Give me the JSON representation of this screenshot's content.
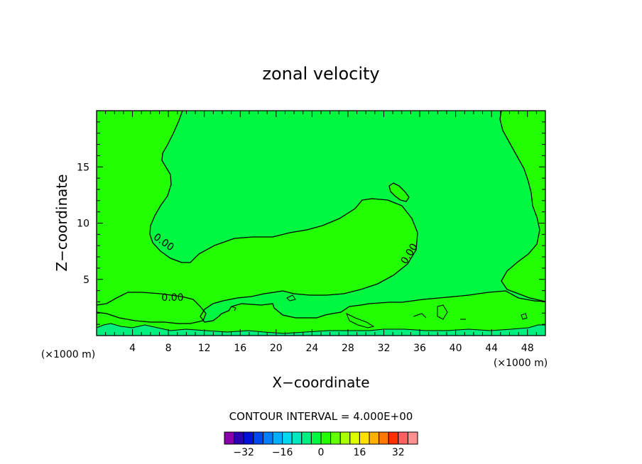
{
  "chart_data": {
    "type": "heatmap",
    "title": "zonal velocity",
    "xlabel": "X−coordinate",
    "ylabel": "Z−coordinate",
    "x_unit_left": "(×1000 m)",
    "x_unit_right": "(×1000 m)",
    "xlim": [
      0,
      50
    ],
    "ylim": [
      0,
      20
    ],
    "x_ticks": [
      4,
      8,
      12,
      16,
      20,
      24,
      28,
      32,
      36,
      40,
      44,
      48
    ],
    "y_ticks": [
      5,
      10,
      15
    ],
    "contour_interval_label": "CONTOUR INTERVAL = 4.000E+00",
    "contour_interval": 4.0,
    "contour_labels": [
      "0.00",
      "0.00",
      "0.00"
    ],
    "colorbar": {
      "tick_labels": [
        "−32",
        "−16",
        "0",
        "16",
        "32"
      ],
      "tick_values": [
        -32,
        -16,
        0,
        16,
        32
      ],
      "levels": [
        -40,
        -36,
        -32,
        -28,
        -24,
        -20,
        -16,
        -12,
        -8,
        -4,
        0,
        4,
        8,
        12,
        16,
        20,
        24,
        28,
        32,
        36,
        40
      ],
      "colors": [
        "#8800aa",
        "#2a00b0",
        "#0010d8",
        "#0048ee",
        "#0080ff",
        "#00b0ff",
        "#00d8f0",
        "#00e8c0",
        "#00f080",
        "#00f840",
        "#22ff00",
        "#66ff00",
        "#aaff00",
        "#ddff00",
        "#ffe000",
        "#ffb000",
        "#ff7800",
        "#ff3000",
        "#ff6060",
        "#ff9090"
      ]
    },
    "regions": [
      {
        "name": "background",
        "range": [
          -4,
          0
        ],
        "color": "#00f840"
      },
      {
        "name": "central-positive-region",
        "range": [
          0,
          4
        ],
        "color": "#22ff00"
      },
      {
        "name": "right-positive-region",
        "range": [
          0,
          4
        ],
        "color": "#22ff00"
      },
      {
        "name": "upper-small-positive",
        "range": [
          0,
          4
        ],
        "color": "#22ff00"
      },
      {
        "name": "surface-negative-layer",
        "range": [
          -8,
          -4
        ],
        "color": "#00f080"
      }
    ]
  }
}
